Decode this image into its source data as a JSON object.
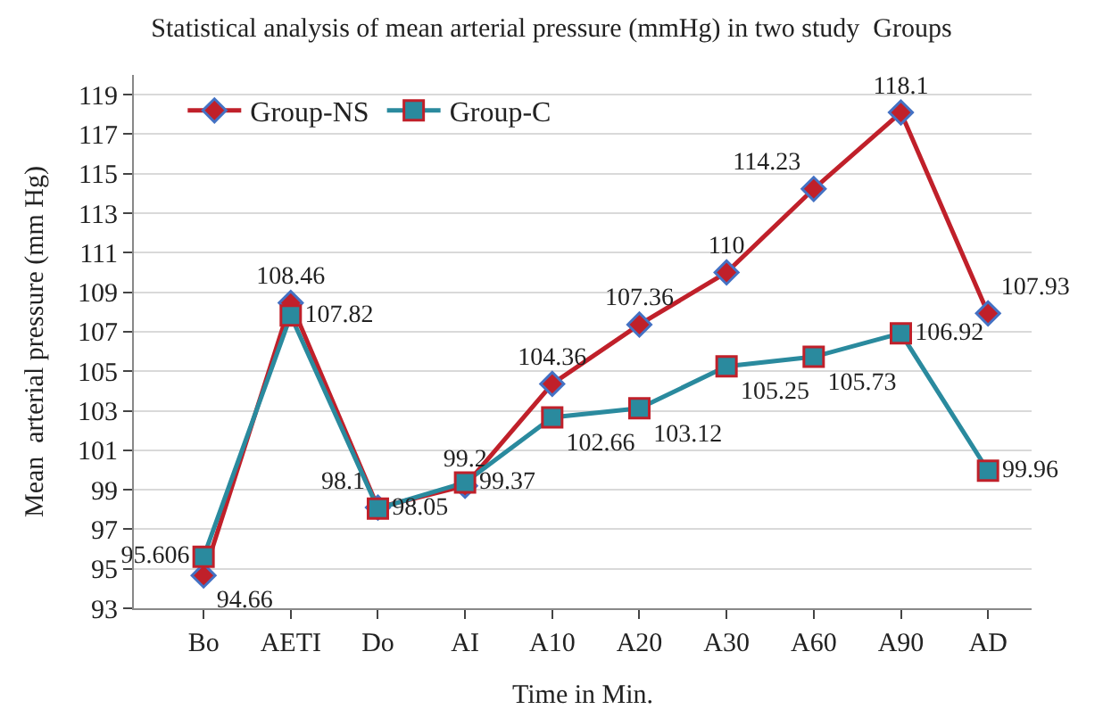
{
  "chart_data": {
    "type": "line",
    "title": "Statistical analysis of mean arterial pressure (mmHg) in two study  Groups",
    "xlabel": "Time in Min.",
    "ylabel": "Mean  arterial pressure (mm Hg)",
    "categories": [
      "Bo",
      "AETI",
      "Do",
      "AI",
      "A10",
      "A20",
      "A30",
      "A60",
      "A90",
      "AD"
    ],
    "series": [
      {
        "name": "Group-NS",
        "color": "#c0202a",
        "marker": "diamond",
        "values": [
          94.66,
          108.46,
          98.1,
          99.2,
          104.36,
          107.36,
          110,
          114.23,
          118.1,
          107.93
        ]
      },
      {
        "name": "Group-C",
        "color": "#2a8a9e",
        "marker": "square",
        "values": [
          95.606,
          107.82,
          98.05,
          99.37,
          102.66,
          103.12,
          105.25,
          105.73,
          106.92,
          99.96
        ]
      }
    ],
    "ylim": [
      93,
      120
    ],
    "yticks": [
      93,
      95,
      97,
      99,
      101,
      103,
      105,
      107,
      109,
      111,
      113,
      115,
      117,
      119
    ],
    "grid": "y",
    "legend": "top left",
    "data_labels": true,
    "line_style": "solid"
  }
}
